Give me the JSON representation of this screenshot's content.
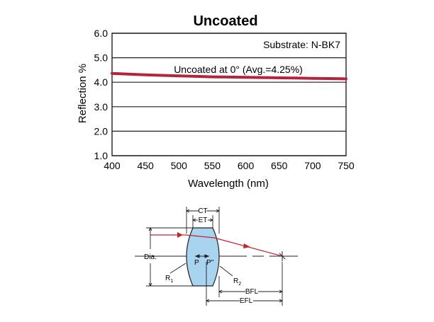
{
  "chart_data": {
    "type": "line",
    "title": "Uncoated",
    "xlabel": "Wavelength (nm)",
    "ylabel": "Reflection %",
    "xlim": [
      400,
      750
    ],
    "ylim": [
      1.0,
      6.0
    ],
    "x_ticks": [
      400,
      450,
      500,
      550,
      600,
      650,
      700,
      750
    ],
    "y_ticks": [
      "1.0",
      "2.0",
      "3.0",
      "4.0",
      "5.0",
      "6.0"
    ],
    "grid": "horizontal",
    "substrate_label": "Substrate: N-BK7",
    "series": [
      {
        "name": "Uncoated at 0°  (Avg.=4.25%)",
        "color": "#b5243a",
        "x": [
          400,
          425,
          450,
          475,
          500,
          525,
          550,
          575,
          600,
          625,
          650,
          675,
          700,
          725,
          750
        ],
        "y": [
          4.36,
          4.33,
          4.3,
          4.28,
          4.26,
          4.24,
          4.22,
          4.21,
          4.2,
          4.19,
          4.18,
          4.17,
          4.16,
          4.15,
          4.14
        ]
      }
    ]
  },
  "diagram": {
    "labels": {
      "ct": "CT",
      "et": "ET",
      "dia": "Dia.",
      "p": "P",
      "p2": "P\"",
      "r1": "R",
      "r1_sub": "1",
      "r2": "R",
      "r2_sub": "2",
      "bfl": "BFL",
      "efl": "EFL"
    },
    "colors": {
      "lens_fill": "#a8d4ef",
      "ray": "#c0262d"
    }
  }
}
